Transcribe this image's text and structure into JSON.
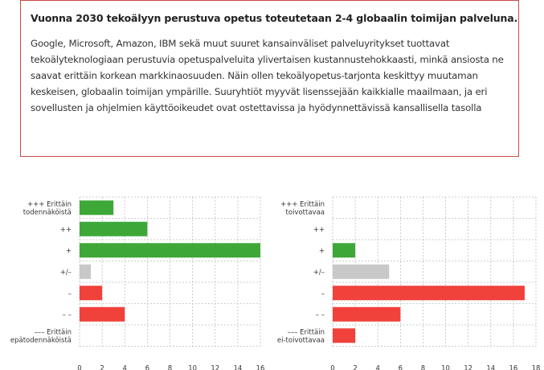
{
  "info_box": {
    "title": "Vuonna 2030 tekoälyyn perustuva opetus toteutetaan 2-4 globaalin toimijan palveluna.",
    "body": "Google, Microsoft, Amazon, IBM sekä muut suuret kansainväliset palveluyritykset tuottavat tekoälyteknologiaan perustuvia opetuspalveluita ylivertaisen kustannustehokkaasti, minkä ansiosta ne saavat erittäin korkean markkinaosuuden. Näin ollen tekoälyopetus-tarjonta keskittyy muutaman keskeisen, globaalin toimijan ympärille. Suuryhtiöt myyvät lisenssejään kaikkialle maailmaan, ja eri sovellusten ja ohjelmien käyttöoikeudet ovat ostettavissa ja hyödynnettävissä kansallisella tasolla"
  },
  "colors": {
    "positive": "#3da838",
    "neutral": "#c8c8c8",
    "negative": "#f0413a",
    "border": "#c94a44"
  },
  "chart_data": [
    {
      "type": "bar",
      "orientation": "horizontal",
      "categories": [
        "+++ Erittäin todennäköistä",
        "++",
        "+",
        "+/–",
        "–",
        "– –",
        "––– Erittäin epätodennäköistä"
      ],
      "category_lines": [
        [
          "+++ Erittäin",
          "todennäköistä"
        ],
        [
          "++"
        ],
        [
          "+"
        ],
        [
          "+/–"
        ],
        [
          "–"
        ],
        [
          "– –"
        ],
        [
          "––– Erittäin",
          "epätodennäköistä"
        ]
      ],
      "values": [
        3,
        6,
        16,
        1,
        2,
        4,
        0
      ],
      "bar_colors": [
        "positive",
        "positive",
        "positive",
        "neutral",
        "negative",
        "negative",
        "negative"
      ],
      "xlim": [
        0,
        16
      ],
      "xticks": [
        0,
        2,
        4,
        6,
        8,
        10,
        12,
        14,
        16
      ],
      "grid": true
    },
    {
      "type": "bar",
      "orientation": "horizontal",
      "categories": [
        "+++ Erittäin toivottavaa",
        "++",
        "+",
        "+/–",
        "–",
        "– –",
        "––– Erittäin ei-toivottavaa"
      ],
      "category_lines": [
        [
          "+++ Erittäin",
          "toivottavaa"
        ],
        [
          "++"
        ],
        [
          "+"
        ],
        [
          "+/–"
        ],
        [
          "–"
        ],
        [
          "– –"
        ],
        [
          "––– Erittäin",
          "ei-toivottavaa"
        ]
      ],
      "values": [
        0,
        0,
        2,
        5,
        17,
        6,
        2
      ],
      "bar_colors": [
        "positive",
        "positive",
        "positive",
        "neutral",
        "negative",
        "negative",
        "negative"
      ],
      "xlim": [
        0,
        18
      ],
      "xticks": [
        0,
        2,
        4,
        6,
        8,
        10,
        12,
        14,
        16,
        18
      ],
      "grid": true
    }
  ]
}
